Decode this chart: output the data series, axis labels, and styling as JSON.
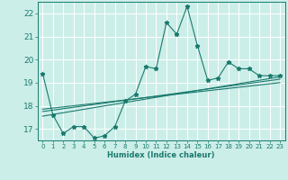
{
  "xlabel": "Humidex (Indice chaleur)",
  "bg_color": "#cceee8",
  "grid_color": "#ffffff",
  "line_color": "#1a7a6e",
  "xlim": [
    -0.5,
    23.5
  ],
  "ylim": [
    16.5,
    22.5
  ],
  "yticks": [
    17,
    18,
    19,
    20,
    21,
    22
  ],
  "xticks": [
    0,
    1,
    2,
    3,
    4,
    5,
    6,
    7,
    8,
    9,
    10,
    11,
    12,
    13,
    14,
    15,
    16,
    17,
    18,
    19,
    20,
    21,
    22,
    23
  ],
  "main_x": [
    0,
    1,
    2,
    3,
    4,
    5,
    6,
    7,
    8,
    9,
    10,
    11,
    12,
    13,
    14,
    15,
    16,
    17,
    18,
    19,
    20,
    21,
    22,
    23
  ],
  "main_y": [
    19.4,
    17.6,
    16.8,
    17.1,
    17.1,
    16.6,
    16.7,
    17.1,
    18.2,
    18.5,
    19.7,
    19.6,
    21.6,
    21.1,
    22.3,
    20.6,
    19.1,
    19.2,
    19.9,
    19.6,
    19.6,
    19.3,
    19.3,
    19.3
  ],
  "line1_x": [
    0,
    23
  ],
  "line1_y": [
    17.55,
    19.25
  ],
  "line2_x": [
    0,
    23
  ],
  "line2_y": [
    17.75,
    19.15
  ],
  "line3_x": [
    0,
    23
  ],
  "line3_y": [
    17.85,
    19.0
  ]
}
